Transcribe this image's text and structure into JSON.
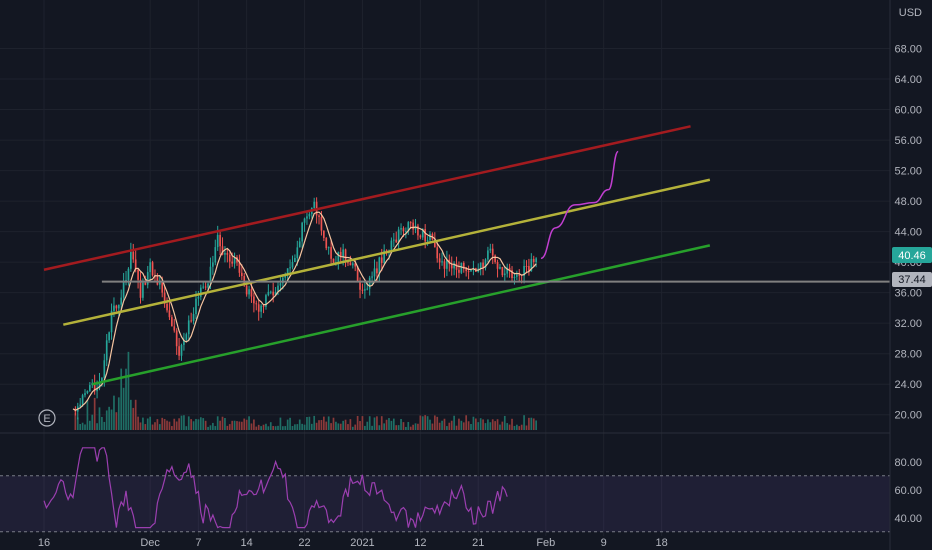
{
  "currency": "USD",
  "current_price": "40.46",
  "support_price": "37.44",
  "event_marker": "E",
  "colors": {
    "background": "#131722",
    "grid": "#1e222d",
    "candle_up": "#26a69a",
    "candle_down": "#ef5350",
    "volume_up": "#1f6f66",
    "volume_down": "#8c3a3a",
    "ma": "#f7c5a0",
    "rsi": "#9b3fb0",
    "rsi_band": "#7e57c2",
    "projection": "#c13fd0",
    "channel_top": "#a31b1f",
    "channel_mid": "#b4b23a",
    "channel_bottom": "#27a02b",
    "support_line": "#808080",
    "price_badge": "#26a69a",
    "support_badge": "#b2b5be"
  },
  "chart_data": {
    "type": "candlestick",
    "x_tick_labels": [
      "16",
      "Dec",
      "7",
      "14",
      "22",
      "2021",
      "12",
      "21",
      "Feb",
      "9",
      "18"
    ],
    "y_tick_labels": [
      "20.00",
      "24.00",
      "28.00",
      "32.00",
      "36.00",
      "40.00",
      "44.00",
      "48.00",
      "52.00",
      "56.00",
      "60.00",
      "64.00",
      "68.00"
    ],
    "y_range": [
      18,
      72
    ],
    "rsi_tick_labels": [
      "40.00",
      "60.00",
      "80.00"
    ],
    "rsi_range": [
      27,
      97
    ],
    "rsi_band": [
      30,
      70
    ],
    "x_ticks": [
      {
        "label": "16",
        "index": 0
      },
      {
        "label": "Dec",
        "index": 11
      },
      {
        "label": "7",
        "index": 16
      },
      {
        "label": "14",
        "index": 21
      },
      {
        "label": "22",
        "index": 27
      },
      {
        "label": "2021",
        "index": 33
      },
      {
        "label": "12",
        "index": 39
      },
      {
        "label": "21",
        "index": 45
      },
      {
        "label": "Feb",
        "index": 52
      },
      {
        "label": "9",
        "index": 58
      },
      {
        "label": "18",
        "index": 64
      }
    ],
    "waypoints": [
      [
        3,
        20.5
      ],
      [
        5,
        23.5
      ],
      [
        6,
        25
      ],
      [
        7,
        33
      ],
      [
        8,
        35.5
      ],
      [
        9,
        41
      ],
      [
        10,
        36
      ],
      [
        11,
        39.5
      ],
      [
        12,
        37
      ],
      [
        13,
        33.5
      ],
      [
        14,
        28
      ],
      [
        15,
        32
      ],
      [
        16,
        35.5
      ],
      [
        17,
        37.5
      ],
      [
        18,
        43
      ],
      [
        19,
        40.5
      ],
      [
        20,
        40
      ],
      [
        21,
        36.5
      ],
      [
        22,
        34
      ],
      [
        23,
        35
      ],
      [
        24,
        36.5
      ],
      [
        25,
        38
      ],
      [
        26,
        40
      ],
      [
        27,
        46
      ],
      [
        28,
        47.5
      ],
      [
        29,
        43
      ],
      [
        30,
        40.5
      ],
      [
        31,
        41
      ],
      [
        32,
        39.5
      ],
      [
        33,
        36
      ],
      [
        34,
        38
      ],
      [
        35,
        40.5
      ],
      [
        36,
        42.5
      ],
      [
        37,
        44
      ],
      [
        38,
        45
      ],
      [
        39,
        44
      ],
      [
        40,
        43
      ],
      [
        41,
        40
      ],
      [
        42,
        39.5
      ],
      [
        43,
        39
      ],
      [
        44,
        39.5
      ],
      [
        45,
        38.5
      ],
      [
        46,
        41.5
      ],
      [
        47,
        39.5
      ],
      [
        48,
        38.5
      ],
      [
        49,
        38
      ],
      [
        50,
        39
      ],
      [
        51,
        40.5
      ]
    ],
    "channels": [
      {
        "name": "",
        "from": [
          0,
          39
        ],
        "to": [
          67,
          57.8
        ]
      },
      {
        "name": "",
        "from": [
          2,
          31.8
        ],
        "to": [
          69,
          50.8
        ]
      },
      {
        "name": "",
        "from": [
          5,
          24
        ],
        "to": [
          69,
          42.2
        ]
      }
    ],
    "support_level": {
      "value": 37.44,
      "from": 6,
      "to": 69
    },
    "projection": [
      [
        51.5,
        40.5
      ],
      [
        53,
        44.5
      ],
      [
        55,
        47.5
      ],
      [
        57,
        47.8
      ],
      [
        58.5,
        49.5
      ],
      [
        59.5,
        54.5
      ]
    ]
  }
}
